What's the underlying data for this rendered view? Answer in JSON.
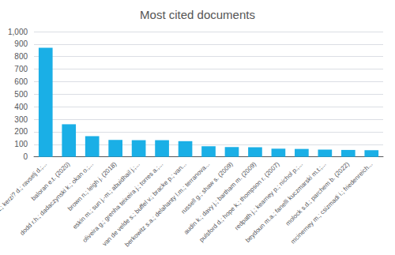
{
  "chart_data": {
    "type": "bar",
    "title": "Most cited documents",
    "categories": [
      "aristovnik a.; kerzi? d.; ravselj d.;...",
      "baloran e.t. (2020)",
      "dodd r.h.; dadaczynski k.; okan o.;...",
      "brown n.; leigh j. (2018)",
      "eskin m.; sun j.-m.; abuidhail j.;...",
      "oliveira g.; grenha teixeira j.; torres a.;...",
      "van de velde s.; buffel v.; bracke p.; van...",
      "berkowitz s.a.; delahanty l.m.; terranova...",
      "russell g.; shaw s. (2009)",
      "audin k.; davy j.; bartham m. (2009)",
      "pulsford d.; hope k.; thompson r. (2007)",
      "redpath j.; kearney p.; nichol p.;...",
      "beydoun m.a.; fanelli kuczmarski m.t.;...",
      "molock s.d.; parchem b. (2022)",
      "mcinerney m.; csizmadi i.; friedenreich..."
    ],
    "values": [
      870,
      260,
      165,
      135,
      133,
      133,
      125,
      85,
      78,
      77,
      65,
      63,
      58,
      55,
      53
    ],
    "color": "#1AAFE6",
    "ylim": [
      0,
      1000
    ],
    "yticks": [
      0,
      100,
      200,
      300,
      400,
      500,
      600,
      700,
      800,
      900,
      1000
    ],
    "grid": true
  }
}
